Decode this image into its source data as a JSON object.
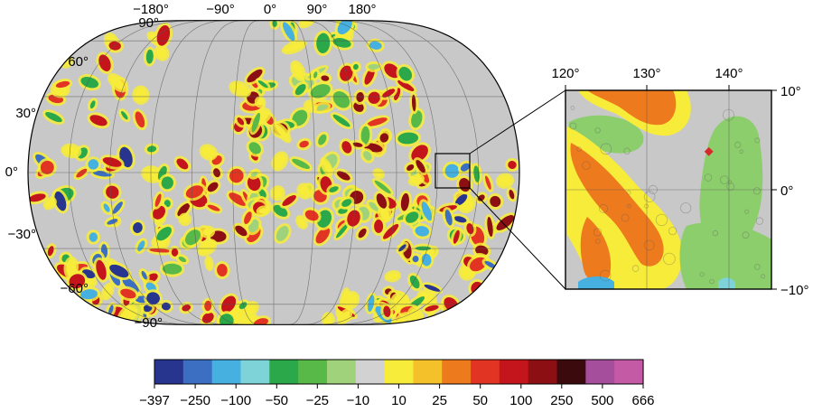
{
  "global_map": {
    "projection": "Winkel Tripel",
    "lon_labels": [
      "−180°",
      "−90°",
      "0°",
      "90°",
      "180°"
    ],
    "lat_labels": [
      "90°",
      "60°",
      "30°",
      "0°",
      "−30°",
      "−60°",
      "−90°"
    ],
    "base_color": "#c8c8c8",
    "grid_color": "#555555"
  },
  "inset_map": {
    "lon_labels": [
      "120°",
      "130°",
      "140°"
    ],
    "lat_labels": [
      "10°",
      "0°",
      "−10°"
    ],
    "lon_range": [
      120,
      145
    ],
    "lat_range": [
      -12,
      12
    ],
    "marker_color": "#d42a2a",
    "marker_lon": 137.4,
    "marker_lat": 4.6
  },
  "colorbar": {
    "tick_labels": [
      "−397",
      "−250",
      "−100",
      "−50",
      "−25",
      "−10",
      "10",
      "25",
      "50",
      "100",
      "250",
      "500",
      "666"
    ],
    "colors": [
      "#28358f",
      "#3c6fc1",
      "#46b0e0",
      "#7ed3d9",
      "#2aa84a",
      "#58b848",
      "#9fd27a",
      "#d2d2d2",
      "#f7ec3a",
      "#f5c12a",
      "#ee7a1e",
      "#e23423",
      "#c4151c",
      "#8c0f14",
      "#3a0a0c",
      "#a54f9c",
      "#c45aa6"
    ]
  }
}
